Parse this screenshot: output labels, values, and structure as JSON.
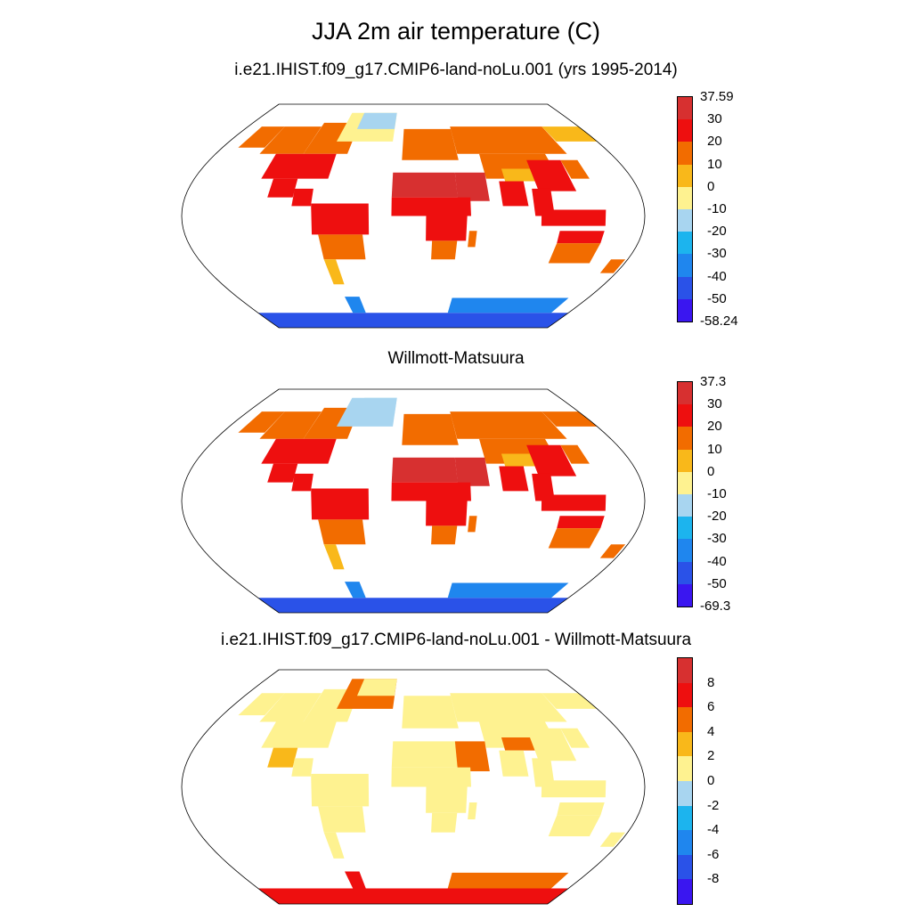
{
  "title": "JJA 2m air temperature (C)",
  "panels": [
    {
      "subtitle": "i.e21.IHIST.f09_g17.CMIP6-land-noLu.001 (yrs 1995-2014)",
      "colorbar": {
        "labels": [
          "37.59",
          "30",
          "20",
          "10",
          "0",
          "-10",
          "-20",
          "-30",
          "-40",
          "-50",
          "-58.24"
        ],
        "colors": [
          "#d73030",
          "#ee0f0f",
          "#f26c00",
          "#f9b81a",
          "#fef290",
          "#a8d5f0",
          "#1cb4ee",
          "#1f86ee",
          "#2a52e8",
          "#3a16f0"
        ]
      }
    },
    {
      "subtitle": "Willmott-Matsuura",
      "colorbar": {
        "labels": [
          "37.3",
          "30",
          "20",
          "10",
          "0",
          "-10",
          "-20",
          "-30",
          "-40",
          "-50",
          "-69.3"
        ],
        "colors": [
          "#d73030",
          "#ee0f0f",
          "#f26c00",
          "#f9b81a",
          "#fef290",
          "#a8d5f0",
          "#1cb4ee",
          "#1f86ee",
          "#2a52e8",
          "#3a16f0"
        ]
      }
    },
    {
      "subtitle": "i.e21.IHIST.f09_g17.CMIP6-land-noLu.001 - Willmott-Matsuura",
      "colorbar": {
        "labels": [
          "8",
          "6",
          "4",
          "2",
          "0",
          "-2",
          "-4",
          "-6",
          "-8"
        ],
        "colors": [
          "#d73030",
          "#ee0f0f",
          "#f26c00",
          "#f9b81a",
          "#fef290",
          "#a8d5f0",
          "#1cb4ee",
          "#1f86ee",
          "#2a52e8",
          "#3a16f0"
        ]
      }
    }
  ]
}
